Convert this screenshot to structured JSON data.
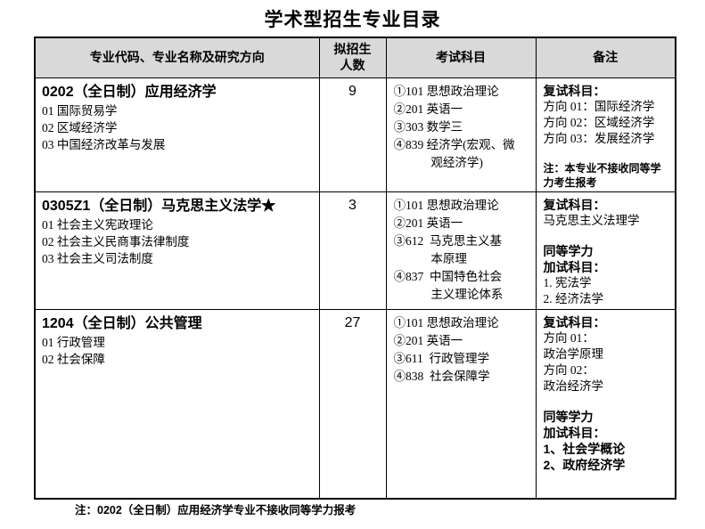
{
  "title": "学术型招生专业目录",
  "table": {
    "headers": [
      "专业代码、专业名称及研究方向",
      "拟招生\n人数",
      "考试科目",
      "备注"
    ],
    "rows": [
      {
        "program": "0202（全日制）应用经济学",
        "directions": [
          "01 国际贸易学",
          "02 区域经济学",
          "03 中国经济改革与发展"
        ],
        "quota": "9",
        "subjects": [
          "①101 思想政治理论",
          "②201 英语一",
          "③303 数学三",
          "④839 经济学(宏观、微\n观经济学)"
        ],
        "remarks": [
          {
            "style": "bold",
            "text": "复试科目："
          },
          {
            "style": "normal",
            "text": "方向 01：国际经济学"
          },
          {
            "style": "normal",
            "text": "方向 02：区域经济学"
          },
          {
            "style": "normal",
            "text": "方向 03：发展经济学"
          },
          {
            "style": "spacer",
            "text": ""
          },
          {
            "style": "note",
            "text": "注：本专业不接收同等学力考生报考"
          }
        ]
      },
      {
        "program": "0305Z1（全日制）马克思主义法学★",
        "directions": [
          "01 社会主义宪政理论",
          "02 社会主义民商事法律制度",
          "03 社会主义司法制度"
        ],
        "quota": "3",
        "subjects": [
          "①101 思想政治理论",
          "②201 英语一",
          "③612  马克思主义基\n本原理",
          "④837  中国特色社会\n主义理论体系"
        ],
        "remarks": [
          {
            "style": "bold",
            "text": "复试科目："
          },
          {
            "style": "normal",
            "text": "马克思主义法理学"
          },
          {
            "style": "spacer",
            "text": ""
          },
          {
            "style": "bold",
            "text": "同等学力"
          },
          {
            "style": "bold",
            "text": "加试科目："
          },
          {
            "style": "normal",
            "text": "1. 宪法学"
          },
          {
            "style": "normal",
            "text": "2. 经济法学"
          }
        ]
      },
      {
        "program": "1204（全日制）公共管理",
        "directions": [
          "01 行政管理",
          "02 社会保障"
        ],
        "quota": "27",
        "subjects": [
          "①101 思想政治理论",
          "②201 英语一",
          "③611  行政管理学",
          "④838  社会保障学"
        ],
        "remarks": [
          {
            "style": "bold",
            "text": "复试科目："
          },
          {
            "style": "normal",
            "text": "方向 01："
          },
          {
            "style": "normal",
            "text": "政治学原理"
          },
          {
            "style": "normal",
            "text": "方向 02："
          },
          {
            "style": "normal",
            "text": "政治经济学"
          },
          {
            "style": "spacer",
            "text": ""
          },
          {
            "style": "bold",
            "text": "同等学力"
          },
          {
            "style": "bold",
            "text": "加试科目："
          },
          {
            "style": "bold",
            "text": "1、社会学概论"
          },
          {
            "style": "bold",
            "text": "2、政府经济学"
          }
        ]
      }
    ]
  },
  "footnote": "注：0202（全日制）应用经济学专业不接收同等学力报考",
  "colors": {
    "header_bg": "#d9d9d9",
    "border": "#000000",
    "text": "#000000",
    "page_bg": "#ffffff"
  }
}
